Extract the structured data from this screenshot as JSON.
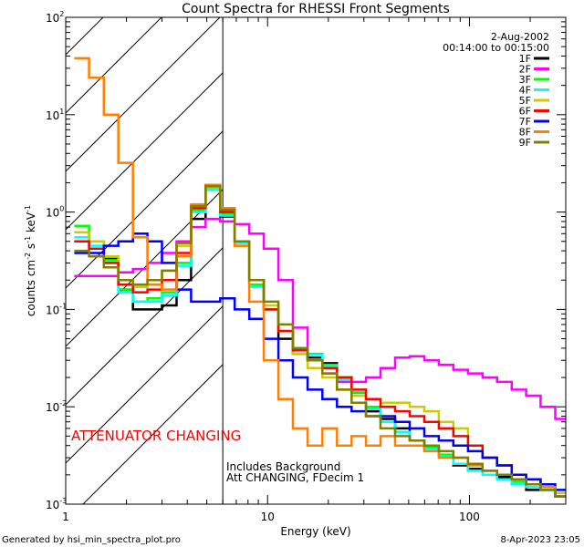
{
  "chart_data": {
    "type": "line",
    "title": "Count Spectra for RHESSI Front Segments",
    "xlabel": "Energy (keV)",
    "ylabel": {
      "base": "counts cm",
      "e1": "-2",
      "mid1": " s",
      "e2": "-1",
      "mid2": " keV",
      "e3": "-1"
    },
    "x_scale": "log",
    "y_scale": "log",
    "xlim": [
      1,
      300
    ],
    "ylim": [
      0.001,
      100
    ],
    "x_ticks": [
      {
        "value": 1,
        "label": "1"
      },
      {
        "value": 10,
        "label": "10"
      },
      {
        "value": 100,
        "label": "100"
      }
    ],
    "y_ticks": [
      {
        "value": 100,
        "base": "10",
        "exp": "2"
      },
      {
        "value": 10,
        "base": "10",
        "exp": "1"
      },
      {
        "value": 1,
        "base": "10",
        "exp": "0"
      },
      {
        "value": 0.1,
        "base": "10",
        "exp": "-1"
      },
      {
        "value": 0.01,
        "base": "10",
        "exp": "-2"
      },
      {
        "value": 0.001,
        "base": "10",
        "exp": "-3"
      }
    ],
    "legend": {
      "position": "top-right",
      "date": "2-Aug-2002",
      "time_range": "00:14:00 to 00:15:00"
    },
    "hatched_region": {
      "x_end": 6
    },
    "annotations": {
      "attenuator": "ATTENUATOR CHANGING",
      "background": "Includes Background",
      "att_state": "Att CHANGING, FDecim 1"
    },
    "series": [
      {
        "name": "1F",
        "color": "#000000",
        "x": [
          1.2,
          1.42,
          1.68,
          1.98,
          2.34,
          2.76,
          3.26,
          3.85,
          4.54,
          5.36,
          6.33,
          7.47,
          8.82,
          10.4,
          12.3,
          14.5,
          17.2,
          20.3,
          24,
          28.3,
          33.4,
          39.4,
          46.6,
          55,
          64.9,
          76.6,
          90.5,
          107,
          126,
          149,
          176,
          207,
          245,
          289
        ],
        "values": [
          0.5,
          0.5,
          0.33,
          0.16,
          0.1,
          0.1,
          0.11,
          0.2,
          0.85,
          1.7,
          0.9,
          0.5,
          0.17,
          0.1,
          0.05,
          0.035,
          0.032,
          0.028,
          0.02,
          0.014,
          0.009,
          0.0075,
          0.006,
          0.0045,
          0.0038,
          0.0032,
          0.0025,
          0.0023,
          0.002,
          0.0019,
          0.0016,
          0.0014,
          0.0014,
          0.0012
        ]
      },
      {
        "name": "2F",
        "color": "#ff00ff",
        "x": [
          1.2,
          1.42,
          1.68,
          1.98,
          2.34,
          2.76,
          3.26,
          3.85,
          4.54,
          5.36,
          6.33,
          7.47,
          8.82,
          10.4,
          12.3,
          14.5,
          17.2,
          20.3,
          24,
          28.3,
          33.4,
          39.4,
          46.6,
          55,
          64.9,
          76.6,
          90.5,
          107,
          126,
          149,
          176,
          207,
          245,
          289
        ],
        "values": [
          0.22,
          0.22,
          0.22,
          0.24,
          0.26,
          0.3,
          0.38,
          0.5,
          0.7,
          0.85,
          0.8,
          0.75,
          0.6,
          0.42,
          0.2,
          0.065,
          0.03,
          0.022,
          0.018,
          0.018,
          0.02,
          0.025,
          0.032,
          0.033,
          0.03,
          0.027,
          0.024,
          0.022,
          0.02,
          0.018,
          0.015,
          0.013,
          0.01,
          0.0075
        ]
      },
      {
        "name": "3F",
        "color": "#00ff00",
        "x": [
          1.2,
          1.42,
          1.68,
          1.98,
          2.34,
          2.76,
          3.26,
          3.85,
          4.54,
          5.36,
          6.33,
          7.47,
          8.82,
          10.4,
          12.3,
          14.5,
          17.2,
          20.3,
          24,
          28.3,
          33.4,
          39.4,
          46.6,
          55,
          64.9,
          76.6,
          90.5,
          107,
          126,
          149,
          176,
          207,
          245,
          289
        ],
        "values": [
          0.72,
          0.5,
          0.32,
          0.16,
          0.12,
          0.13,
          0.15,
          0.3,
          1.05,
          1.75,
          0.95,
          0.5,
          0.18,
          0.1,
          0.06,
          0.04,
          0.035,
          0.027,
          0.02,
          0.014,
          0.01,
          0.007,
          0.0055,
          0.0045,
          0.0038,
          0.0032,
          0.0026,
          0.0022,
          0.002,
          0.0018,
          0.0017,
          0.0016,
          0.0015,
          0.0012
        ]
      },
      {
        "name": "4F",
        "color": "#00ffff",
        "x": [
          1.2,
          1.42,
          1.68,
          1.98,
          2.34,
          2.76,
          3.26,
          3.85,
          4.54,
          5.36,
          6.33,
          7.47,
          8.82,
          10.4,
          12.3,
          14.5,
          17.2,
          20.3,
          24,
          28.3,
          33.4,
          39.4,
          46.6,
          55,
          64.9,
          76.6,
          90.5,
          107,
          126,
          149,
          176,
          207,
          245,
          289
        ],
        "values": [
          0.55,
          0.45,
          0.3,
          0.15,
          0.12,
          0.12,
          0.14,
          0.28,
          1.0,
          1.7,
          0.92,
          0.48,
          0.17,
          0.1,
          0.06,
          0.04,
          0.034,
          0.026,
          0.019,
          0.013,
          0.0095,
          0.007,
          0.0055,
          0.0045,
          0.0037,
          0.0031,
          0.0026,
          0.0022,
          0.002,
          0.0018,
          0.0016,
          0.0015,
          0.0014,
          0.0012
        ]
      },
      {
        "name": "5F",
        "color": "#cccc00",
        "x": [
          1.2,
          1.42,
          1.68,
          1.98,
          2.34,
          2.76,
          3.26,
          3.85,
          4.54,
          5.36,
          6.33,
          7.47,
          8.82,
          10.4,
          12.3,
          14.5,
          17.2,
          20.3,
          24,
          28.3,
          33.4,
          39.4,
          46.6,
          55,
          64.9,
          76.6,
          90.5,
          107,
          126,
          149,
          176,
          207,
          245,
          289
        ],
        "values": [
          0.62,
          0.5,
          0.35,
          0.2,
          0.17,
          0.18,
          0.25,
          0.45,
          1.1,
          1.8,
          1.0,
          0.45,
          0.2,
          0.11,
          0.06,
          0.035,
          0.025,
          0.02,
          0.015,
          0.013,
          0.012,
          0.011,
          0.011,
          0.01,
          0.009,
          0.007,
          0.006,
          0.004,
          0.003,
          0.0025,
          0.002,
          0.0018,
          0.0015,
          0.0013
        ]
      },
      {
        "name": "6F",
        "color": "#ff0000",
        "x": [
          1.2,
          1.42,
          1.68,
          1.98,
          2.34,
          2.76,
          3.26,
          3.85,
          4.54,
          5.36,
          6.33,
          7.47,
          8.82,
          10.4,
          12.3,
          14.5,
          17.2,
          20.3,
          24,
          28.3,
          33.4,
          39.4,
          46.6,
          55,
          64.9,
          76.6,
          90.5,
          107,
          126,
          149,
          176,
          207,
          245,
          289
        ],
        "values": [
          0.5,
          0.42,
          0.3,
          0.18,
          0.15,
          0.16,
          0.2,
          0.38,
          1.1,
          1.85,
          1.0,
          0.5,
          0.2,
          0.1,
          0.06,
          0.038,
          0.03,
          0.025,
          0.02,
          0.015,
          0.012,
          0.01,
          0.009,
          0.008,
          0.007,
          0.006,
          0.005,
          0.004,
          0.003,
          0.0025,
          0.002,
          0.0018,
          0.0015,
          0.0012
        ]
      },
      {
        "name": "7F",
        "color": "#0000ff",
        "x": [
          1.2,
          1.42,
          1.68,
          1.98,
          2.34,
          2.76,
          3.26,
          3.85,
          4.54,
          5.36,
          6.33,
          7.47,
          8.82,
          10.4,
          12.3,
          14.5,
          17.2,
          20.3,
          24,
          28.3,
          33.4,
          39.4,
          46.6,
          55,
          64.9,
          76.6,
          90.5,
          107,
          126,
          149,
          176,
          207,
          245,
          289
        ],
        "values": [
          0.38,
          0.38,
          0.45,
          0.5,
          0.6,
          0.5,
          0.3,
          0.16,
          0.12,
          0.12,
          0.13,
          0.1,
          0.08,
          0.05,
          0.03,
          0.02,
          0.015,
          0.012,
          0.01,
          0.009,
          0.008,
          0.008,
          0.007,
          0.006,
          0.005,
          0.0045,
          0.004,
          0.0035,
          0.003,
          0.0025,
          0.002,
          0.0018,
          0.0016,
          0.0014
        ]
      },
      {
        "name": "8F",
        "color": "#ff8000",
        "x": [
          1.2,
          1.42,
          1.68,
          1.98,
          2.34,
          2.76,
          3.26,
          3.85,
          4.54,
          5.36,
          6.33,
          7.47,
          8.82,
          10.4,
          12.3,
          14.5,
          17.2,
          20.3,
          24,
          28.3,
          33.4,
          39.4,
          46.6,
          55,
          64.9,
          76.6,
          90.5,
          107,
          126,
          149,
          176,
          207,
          245,
          289
        ],
        "values": [
          38,
          24,
          10,
          3.2,
          0.55,
          0.18,
          0.16,
          0.35,
          1.2,
          1.9,
          1.1,
          0.45,
          0.12,
          0.03,
          0.012,
          0.006,
          0.004,
          0.006,
          0.004,
          0.005,
          0.004,
          0.005,
          0.004,
          0.004,
          0.0035,
          0.003,
          0.003,
          0.0025,
          0.0022,
          0.002,
          0.0018,
          0.0016,
          0.0015,
          0.0012
        ]
      },
      {
        "name": "9F",
        "color": "#808000",
        "x": [
          1.2,
          1.42,
          1.68,
          1.98,
          2.34,
          2.76,
          3.26,
          3.85,
          4.54,
          5.36,
          6.33,
          7.47,
          8.82,
          10.4,
          12.3,
          14.5,
          17.2,
          20.3,
          24,
          28.3,
          33.4,
          39.4,
          46.6,
          55,
          64.9,
          76.6,
          90.5,
          107,
          126,
          149,
          176,
          207,
          245,
          289
        ],
        "values": [
          0.4,
          0.35,
          0.27,
          0.2,
          0.18,
          0.2,
          0.25,
          0.48,
          1.15,
          1.85,
          1.05,
          0.5,
          0.2,
          0.12,
          0.07,
          0.04,
          0.03,
          0.022,
          0.015,
          0.011,
          0.008,
          0.006,
          0.005,
          0.0045,
          0.004,
          0.0035,
          0.003,
          0.0026,
          0.0022,
          0.002,
          0.0018,
          0.0016,
          0.0014,
          0.0012
        ]
      }
    ]
  },
  "footer": {
    "generated_by": "Generated by hsi_min_spectra_plot.pro",
    "timestamp": "8-Apr-2023 23:05"
  }
}
